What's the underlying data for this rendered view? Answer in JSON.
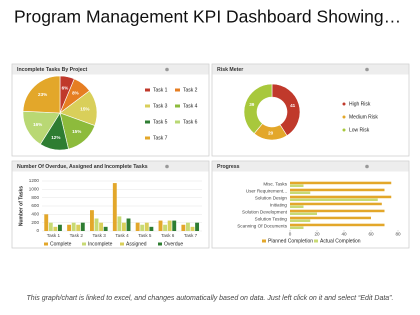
{
  "title": "Program Management KPI Dashboard Showing…",
  "footer": "This graph/chart is linked to excel, and changes automatically based on data. Just left click on it and select “Edit Data”.",
  "chart_data": [
    {
      "type": "pie",
      "title": "Incomplete Tasks By Project",
      "categories": [
        "Task 1",
        "Task 2",
        "Task 3",
        "Task 4",
        "Task 5",
        "Task 6",
        "Task 7"
      ],
      "values": [
        6,
        8,
        15,
        15,
        12,
        16,
        23
      ],
      "value_labels": [
        "6%",
        "8%",
        "15%",
        "15%",
        "12%",
        "16%",
        "23%"
      ],
      "colors": [
        "#c0392b",
        "#e67e22",
        "#d9cf5a",
        "#8dbb3c",
        "#2e7d32",
        "#b9d874",
        "#e3a72a"
      ]
    },
    {
      "type": "donut",
      "title": "Risk Meter",
      "categories": [
        "High Risk",
        "Medium Risk",
        "Low Risk"
      ],
      "values": [
        41,
        20,
        39
      ],
      "colors": [
        "#c0392b",
        "#e3a72a",
        "#a8c83c"
      ]
    },
    {
      "type": "bar",
      "title": "Number Of Overdue, Assigned and Incomplete Tasks",
      "y_label": "Number of Tasks",
      "categories": [
        "Task 1",
        "Task 2",
        "Task 3",
        "Task 4",
        "Task 5",
        "Task 6",
        "Task 7"
      ],
      "series": [
        {
          "name": "Complete",
          "color": "#e3a72a",
          "values": [
            400,
            150,
            500,
            1150,
            200,
            250,
            150
          ]
        },
        {
          "name": "Incomplete",
          "color": "#c8da74",
          "values": [
            200,
            200,
            300,
            350,
            150,
            150,
            200
          ]
        },
        {
          "name": "Assigned",
          "color": "#d9cf5a",
          "values": [
            100,
            150,
            200,
            200,
            200,
            250,
            100
          ]
        },
        {
          "name": "Overdue",
          "color": "#2e7d32",
          "values": [
            150,
            200,
            100,
            300,
            100,
            250,
            200
          ]
        }
      ],
      "ylim": [
        0,
        1200
      ],
      "yticks": [
        0,
        200,
        400,
        600,
        800,
        1000,
        1200
      ],
      "grid": true
    },
    {
      "type": "hbar",
      "title": "Progress",
      "categories": [
        "Misc. Tasks",
        "User Requirement...",
        "Solution Design",
        "Initiating",
        "Solution Development",
        "Solution Testing",
        "Scanning Of Documents"
      ],
      "series": [
        {
          "name": "Planned Completion",
          "color": "#e3a72a",
          "values": [
            75,
            70,
            75,
            68,
            70,
            60,
            70
          ]
        },
        {
          "name": "Actual Completion",
          "color": "#c8da74",
          "values": [
            10,
            15,
            65,
            10,
            20,
            15,
            10
          ]
        }
      ],
      "xlim": [
        0,
        80
      ],
      "xticks": [
        0,
        20,
        40,
        60,
        80
      ]
    }
  ]
}
